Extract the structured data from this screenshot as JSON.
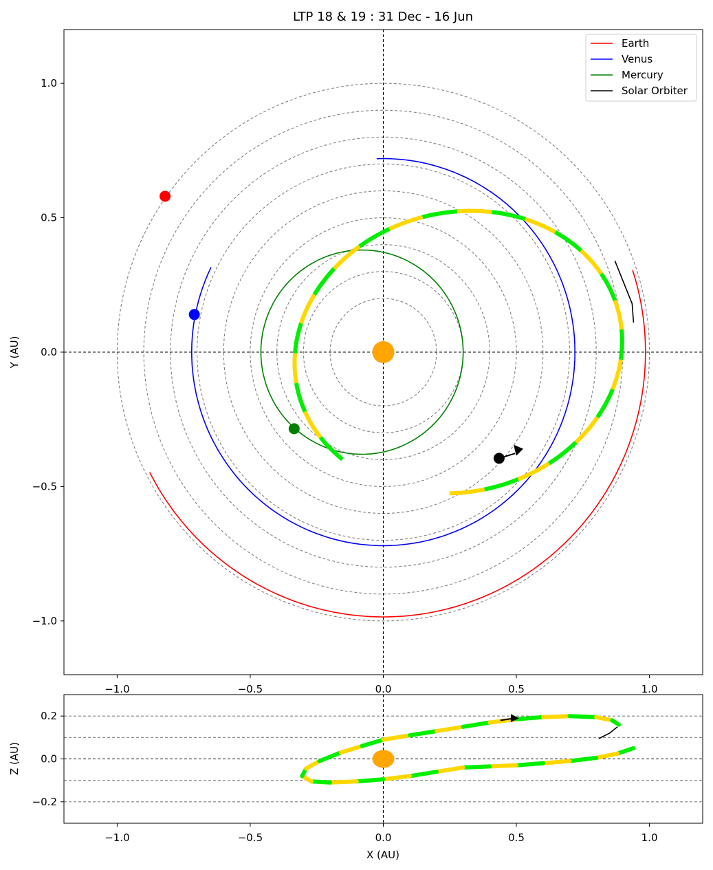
{
  "chart_data": {
    "type": "line",
    "title": "LTP 18 & 19 : 31 Dec - 16 Jun",
    "colors": {
      "earth": "#ff0000",
      "venus": "#0000ff",
      "mercury": "#008000",
      "solar_orbiter": "#000000",
      "segment_a": "#00ee00",
      "segment_b": "#ffd700",
      "sun": "#ffa500",
      "ref_circles": "#808080"
    },
    "legend": {
      "placement": "upper-right",
      "entries": [
        {
          "label": "Earth",
          "color": "#ff0000"
        },
        {
          "label": "Venus",
          "color": "#0000ff"
        },
        {
          "label": "Mercury",
          "color": "#008000"
        },
        {
          "label": "Solar Orbiter",
          "color": "#000000"
        }
      ]
    },
    "panels": [
      {
        "id": "xy",
        "xlabel": "",
        "ylabel": "Y (AU)",
        "xlim": [
          -1.2,
          1.2
        ],
        "ylim": [
          -1.2,
          1.2
        ],
        "xticks": [
          -1.0,
          -0.5,
          0.0,
          0.5,
          1.0
        ],
        "yticks": [
          -1.0,
          -0.5,
          0.0,
          0.5,
          1.0
        ],
        "xtick_labels": [
          "−1.0",
          "−0.5",
          "0.0",
          "0.5",
          "1.0"
        ],
        "ytick_labels": [
          "−1.0",
          "−0.5",
          "0.0",
          "0.5",
          "1.0"
        ],
        "reference_circles_radius": [
          0.2,
          0.3,
          0.4,
          0.5,
          0.6,
          0.7,
          0.8,
          0.9,
          1.0
        ],
        "earth": {
          "radius": 0.985,
          "start_angle_deg": 207,
          "end_angle_deg": 378,
          "position": [
            -0.82,
            0.58
          ]
        },
        "venus": {
          "radius": 0.72,
          "start_angle_deg": 154,
          "end_angle_deg": 452,
          "position": [
            -0.71,
            0.14
          ]
        },
        "mercury": {
          "center": [
            -0.08,
            0.0
          ],
          "radius": 0.38,
          "position": [
            -0.335,
            -0.285
          ]
        },
        "solar_orbiter": {
          "ellipse_center": [
            0.282,
            0.0
          ],
          "semi_axes": [
            0.62,
            0.52
          ],
          "rotation_deg": 13,
          "path_start_angle_deg": -104,
          "path_end_angle_deg": 214,
          "position": [
            0.435,
            -0.395
          ],
          "tail": [
            [
              0.94,
              0.11
            ],
            [
              0.935,
              0.18
            ],
            [
              0.87,
              0.34
            ]
          ],
          "arrow_angle_deg": -78
        }
      },
      {
        "id": "xz",
        "xlabel": "X (AU)",
        "ylabel": "Z (AU)",
        "xlim": [
          -1.2,
          1.2
        ],
        "ylim": [
          -0.3,
          0.3
        ],
        "xticks": [
          -1.0,
          -0.5,
          0.0,
          0.5,
          1.0
        ],
        "yticks": [
          -0.2,
          0.0,
          0.2
        ],
        "xtick_labels": [
          "−1.0",
          "−0.5",
          "0.0",
          "0.5",
          "1.0"
        ],
        "ytick_labels": [
          "−0.2",
          "0.0",
          "0.2"
        ],
        "reference_lines_z": [
          -0.3,
          -0.2,
          -0.1,
          0.1,
          0.2
        ],
        "solar_orbiter_path_xz": [
          [
            0.94,
            0.05
          ],
          [
            0.88,
            0.025
          ],
          [
            0.8,
            0.005
          ],
          [
            0.7,
            -0.01
          ],
          [
            0.6,
            -0.02
          ],
          [
            0.5,
            -0.03
          ],
          [
            0.4,
            -0.035
          ],
          [
            0.3,
            -0.04
          ],
          [
            0.2,
            -0.06
          ],
          [
            0.1,
            -0.08
          ],
          [
            0.0,
            -0.095
          ],
          [
            -0.1,
            -0.105
          ],
          [
            -0.2,
            -0.11
          ],
          [
            -0.27,
            -0.105
          ],
          [
            -0.305,
            -0.08
          ],
          [
            -0.29,
            -0.045
          ],
          [
            -0.24,
            -0.01
          ],
          [
            -0.16,
            0.03
          ],
          [
            -0.08,
            0.06
          ],
          [
            0.0,
            0.09
          ],
          [
            0.1,
            0.11
          ],
          [
            0.2,
            0.13
          ],
          [
            0.3,
            0.15
          ],
          [
            0.4,
            0.17
          ],
          [
            0.5,
            0.185
          ],
          [
            0.6,
            0.195
          ],
          [
            0.7,
            0.2
          ],
          [
            0.8,
            0.195
          ],
          [
            0.86,
            0.18
          ],
          [
            0.885,
            0.16
          ]
        ],
        "tail_xz": [
          [
            0.88,
            0.15
          ],
          [
            0.85,
            0.12
          ],
          [
            0.81,
            0.095
          ]
        ],
        "arrow_xz": [
          [
            0.44,
            0.18
          ],
          [
            0.51,
            0.19
          ]
        ]
      }
    ]
  }
}
